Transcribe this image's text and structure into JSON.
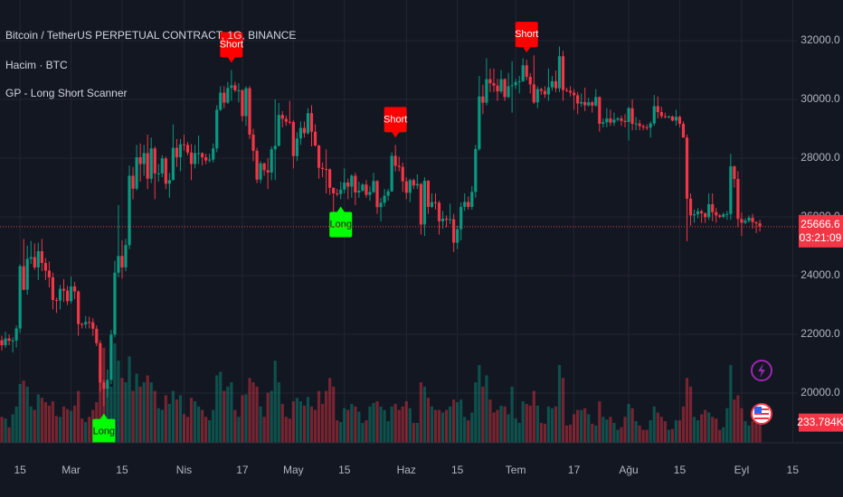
{
  "chart_data": {
    "type": "candlestick",
    "title": "Bitcoin / TetherUS PERPETUAL CONTRACT, 1G, BINANCE",
    "volume_title": "Hacim · BTC",
    "indicator_title": "GP - Long Short Scanner",
    "up_color": "#089981",
    "down_color": "#f23645",
    "grid": true,
    "xlim": [
      40.5,
      259.4
    ],
    "xticks": [
      {
        "value": 46,
        "label": "15"
      },
      {
        "value": 60,
        "label": "Mar"
      },
      {
        "value": 74,
        "label": "15"
      },
      {
        "value": 91,
        "label": "Nis"
      },
      {
        "value": 107,
        "label": "17"
      },
      {
        "value": 121,
        "label": "May"
      },
      {
        "value": 135,
        "label": "15"
      },
      {
        "value": 152,
        "label": "Haz"
      },
      {
        "value": 166,
        "label": "15"
      },
      {
        "value": 182,
        "label": "Tem"
      },
      {
        "value": 198,
        "label": "17"
      },
      {
        "value": 213,
        "label": "Ağu"
      },
      {
        "value": 227,
        "label": "15"
      },
      {
        "value": 244,
        "label": "Eyl"
      },
      {
        "value": 258,
        "label": "15"
      }
    ],
    "ylim": [
      18307.7,
      33384.6
    ],
    "yticks": [
      {
        "value": 20000,
        "label": "20000.0"
      },
      {
        "value": 22000,
        "label": "22000.0"
      },
      {
        "value": 24000,
        "label": "24000.0"
      },
      {
        "value": 26000,
        "label": "26000.0"
      },
      {
        "value": 28000,
        "label": "28000.0"
      },
      {
        "value": 30000,
        "label": "30000.0"
      },
      {
        "value": 32000,
        "label": "32000.0"
      }
    ],
    "x": [
      41,
      42,
      43,
      44,
      45,
      46,
      47,
      48,
      49,
      50,
      51,
      52,
      53,
      54,
      55,
      56,
      57,
      58,
      59,
      60,
      61,
      62,
      63,
      64,
      65,
      66,
      67,
      68,
      69,
      70,
      71,
      72,
      73,
      74,
      75,
      76,
      77,
      78,
      79,
      80,
      81,
      82,
      83,
      84,
      85,
      86,
      87,
      88,
      89,
      90,
      91,
      92,
      93,
      94,
      95,
      96,
      97,
      98,
      99,
      100,
      101,
      102,
      103,
      104,
      105,
      106,
      107,
      108,
      109,
      110,
      111,
      112,
      113,
      114,
      115,
      116,
      117,
      118,
      119,
      120,
      121,
      122,
      123,
      124,
      125,
      126,
      127,
      128,
      129,
      130,
      131,
      132,
      133,
      134,
      135,
      136,
      137,
      138,
      139,
      140,
      141,
      142,
      143,
      144,
      145,
      146,
      147,
      148,
      149,
      150,
      151,
      152,
      153,
      154,
      155,
      156,
      157,
      158,
      159,
      160,
      161,
      162,
      163,
      164,
      165,
      166,
      167,
      168,
      169,
      170,
      171,
      172,
      173,
      174,
      175,
      176,
      177,
      178,
      179,
      180,
      181,
      182,
      183,
      184,
      185,
      186,
      187,
      188,
      189,
      190,
      191,
      192,
      193,
      194,
      195,
      196,
      197,
      198,
      199,
      200,
      201,
      202,
      203,
      204,
      205,
      206,
      207,
      208,
      209,
      210,
      211,
      212,
      213,
      214,
      215,
      216,
      217,
      218,
      219,
      220,
      221,
      222,
      223,
      224,
      225,
      226,
      227,
      228,
      229,
      230,
      231,
      232,
      233,
      234,
      235,
      236,
      237,
      238,
      239,
      240,
      241,
      242,
      243,
      244,
      245,
      246,
      247,
      248,
      249
    ],
    "open": [
      21800,
      21630,
      21860,
      21780,
      21790,
      22200,
      24320,
      23520,
      24570,
      24630,
      24280,
      24830,
      24430,
      24170,
      23940,
      23170,
      23150,
      23550,
      23490,
      23130,
      23630,
      23460,
      22350,
      22340,
      22420,
      22410,
      22190,
      21700,
      20360,
      20150,
      20450,
      21990,
      24100,
      24670,
      24280,
      25040,
      27400,
      26960,
      28030,
      27800,
      28170,
      27300,
      28330,
      27480,
      27480,
      27990,
      27130,
      27250,
      28350,
      28030,
      28470,
      28450,
      28190,
      27800,
      28170,
      28170,
      28030,
      27920,
      27950,
      28330,
      29650,
      30230,
      29890,
      30390,
      30480,
      30310,
      30310,
      29430,
      30380,
      28800,
      28250,
      27270,
      27820,
      27590,
      27510,
      28300,
      28420,
      29470,
      29340,
      29240,
      29230,
      28070,
      28670,
      29030,
      28850,
      29530,
      28900,
      28430,
      27670,
      27630,
      27620,
      26990,
      26800,
      26780,
      26930,
      27170,
      27030,
      27400,
      26830,
      26890,
      27100,
      26750,
      26850,
      27220,
      26330,
      26480,
      26720,
      26870,
      28080,
      27740,
      27700,
      27210,
      26820,
      27250,
      27070,
      27120,
      25740,
      27230,
      26340,
      26500,
      26480,
      25850,
      25940,
      25900,
      25920,
      25120,
      25580,
      26340,
      26510,
      26340,
      26850,
      28310,
      30100,
      29890,
      30690,
      30550,
      30470,
      30270,
      30690,
      30080,
      30450,
      30480,
      30590,
      30620,
      31160,
      30770,
      30510,
      29900,
      30350,
      30290,
      30170,
      30410,
      30620,
      30380,
      31470,
      30320,
      30290,
      30230,
      30140,
      29860,
      29910,
      29800,
      29900,
      29790,
      30080,
      29170,
      29220,
      29350,
      29210,
      29310,
      29350,
      29270,
      29230,
      29700,
      29170,
      29180,
      29090,
      29050,
      29040,
      29180,
      29770,
      29570,
      29430,
      29400,
      29420,
      29280,
      29410,
      29170,
      28700,
      26620,
      26050,
      26090,
      26190,
      26120,
      25990,
      26430,
      26160,
      26050,
      26000,
      26090,
      26100,
      27720,
      27290,
      25930,
      25800,
      25870,
      25970,
      25820,
      25780
    ],
    "high": [
      21950,
      22090,
      22000,
      21900,
      22300,
      24380,
      25250,
      25020,
      25180,
      25100,
      25120,
      25250,
      24600,
      24480,
      24100,
      23250,
      23680,
      23880,
      23650,
      23970,
      23780,
      23500,
      22400,
      22620,
      22600,
      22550,
      22300,
      21800,
      20450,
      20800,
      22150,
      24500,
      26400,
      25200,
      25250,
      27750,
      27700,
      28450,
      28500,
      28450,
      28800,
      28700,
      28400,
      27800,
      28100,
      28050,
      27500,
      29150,
      28650,
      28650,
      28800,
      28550,
      28480,
      28450,
      28770,
      28200,
      28150,
      28150,
      28500,
      29800,
      30450,
      30450,
      30600,
      31000,
      30600,
      30550,
      30350,
      30450,
      30450,
      29000,
      28350,
      27900,
      27850,
      28000,
      28400,
      30000,
      29880,
      29600,
      29450,
      29950,
      29300,
      28880,
      29250,
      29250,
      29700,
      29800,
      29150,
      28450,
      27850,
      28300,
      27650,
      27000,
      26950,
      27200,
      27650,
      27300,
      27450,
      27500,
      27200,
      27150,
      27250,
      27050,
      27500,
      27250,
      26650,
      26950,
      26950,
      28200,
      28450,
      28050,
      27850,
      27350,
      27300,
      27300,
      27450,
      27150,
      27350,
      27250,
      26800,
      26800,
      26550,
      26200,
      26050,
      26450,
      26100,
      25700,
      26500,
      26800,
      26700,
      27050,
      28450,
      30800,
      30500,
      31400,
      31050,
      31050,
      30700,
      31000,
      30720,
      30900,
      31300,
      30700,
      30800,
      31400,
      31350,
      30900,
      31500,
      30450,
      30400,
      30450,
      31050,
      30800,
      30980,
      31800,
      31650,
      30400,
      30450,
      30350,
      30250,
      30200,
      30400,
      30050,
      29950,
      30350,
      30100,
      29350,
      29700,
      29650,
      29550,
      29400,
      29450,
      29500,
      29750,
      30000,
      29400,
      29300,
      29150,
      29150,
      29250,
      30150,
      30100,
      29750,
      29550,
      29450,
      29450,
      29650,
      29450,
      29250,
      28800,
      26800,
      26250,
      26300,
      26250,
      26150,
      26800,
      26800,
      26300,
      26100,
      26150,
      26200,
      28150,
      27750,
      27550,
      26150,
      25950,
      26050,
      26100,
      25850,
      25900
    ],
    "low": [
      21450,
      21540,
      21630,
      21380,
      21550,
      22050,
      23500,
      23350,
      24400,
      24200,
      23850,
      24150,
      23850,
      23600,
      22850,
      22730,
      22850,
      23100,
      23000,
      23050,
      23200,
      21950,
      22200,
      22200,
      22200,
      21950,
      21600,
      20050,
      19550,
      19850,
      20300,
      21900,
      23950,
      23900,
      24150,
      24900,
      26600,
      26900,
      27200,
      27400,
      26950,
      27150,
      26600,
      27200,
      27350,
      26950,
      26650,
      27250,
      27700,
      27550,
      28250,
      28100,
      27250,
      27650,
      27800,
      27750,
      27800,
      27850,
      27850,
      28200,
      29600,
      29700,
      29850,
      29950,
      30250,
      29900,
      29250,
      29100,
      28650,
      27900,
      27150,
      27150,
      27400,
      26950,
      27250,
      27250,
      28400,
      29050,
      29100,
      29150,
      27650,
      27900,
      28450,
      28700,
      28800,
      28400,
      28400,
      27300,
      27350,
      26800,
      26750,
      25800,
      26700,
      26600,
      26800,
      26600,
      26650,
      26400,
      26650,
      26850,
      26650,
      26550,
      26800,
      26100,
      25850,
      26350,
      26550,
      26850,
      27550,
      27550,
      26850,
      26600,
      26500,
      26950,
      26950,
      25400,
      25350,
      26100,
      26300,
      26250,
      25400,
      25600,
      25650,
      25750,
      24800,
      24900,
      25200,
      26200,
      26250,
      26250,
      26650,
      28250,
      29500,
      29800,
      30250,
      30250,
      29950,
      30200,
      29950,
      30050,
      29550,
      30350,
      30200,
      30600,
      30650,
      30200,
      29850,
      29700,
      30150,
      30050,
      29950,
      30300,
      30250,
      30250,
      29950,
      30250,
      30100,
      29650,
      29500,
      29750,
      29600,
      29750,
      29550,
      29750,
      28900,
      29050,
      29050,
      29100,
      29100,
      29250,
      29100,
      29050,
      28600,
      28950,
      28950,
      28950,
      28950,
      28950,
      28700,
      29100,
      29350,
      29350,
      29350,
      29350,
      29250,
      29100,
      29050,
      28700,
      25170,
      25700,
      25800,
      25950,
      25800,
      25800,
      25900,
      25850,
      25800,
      25950,
      25950,
      25900,
      25900,
      27000,
      25650,
      25350,
      25750,
      25800,
      25600,
      25450,
      25500
    ],
    "close": [
      21630,
      21860,
      21780,
      21790,
      22200,
      24320,
      23520,
      24570,
      24630,
      24280,
      24830,
      24430,
      24170,
      23940,
      23170,
      23150,
      23550,
      23490,
      23130,
      23630,
      23460,
      22350,
      22340,
      22420,
      22410,
      22190,
      21700,
      20360,
      20150,
      20450,
      21990,
      24100,
      24670,
      24280,
      25040,
      27400,
      26960,
      28030,
      27800,
      28170,
      27300,
      28330,
      27480,
      27480,
      27990,
      27130,
      27250,
      28350,
      28030,
      28470,
      28450,
      28190,
      27800,
      28170,
      28170,
      28030,
      27920,
      27950,
      28330,
      29650,
      30230,
      29890,
      30390,
      30480,
      30310,
      30310,
      29430,
      30380,
      28800,
      28250,
      27270,
      27820,
      27590,
      27510,
      28300,
      28420,
      29470,
      29340,
      29240,
      29230,
      28070,
      28670,
      29030,
      28850,
      29530,
      28900,
      28430,
      27670,
      27630,
      27620,
      26990,
      26800,
      26780,
      26930,
      27170,
      27030,
      27400,
      26830,
      26890,
      27100,
      26750,
      26850,
      27220,
      26330,
      26480,
      26720,
      26870,
      28080,
      27740,
      27700,
      27210,
      26820,
      27250,
      27070,
      27120,
      25740,
      27230,
      26340,
      26500,
      26480,
      25850,
      25940,
      25900,
      25920,
      25120,
      25580,
      26340,
      26510,
      26340,
      26850,
      28310,
      30100,
      29890,
      30690,
      30550,
      30470,
      30270,
      30690,
      30080,
      30450,
      30480,
      30590,
      30620,
      31160,
      30770,
      30510,
      29900,
      30350,
      30290,
      30170,
      30410,
      30620,
      30380,
      31470,
      30320,
      30290,
      30230,
      30140,
      29860,
      29910,
      29800,
      29900,
      29790,
      30080,
      29170,
      29220,
      29350,
      29210,
      29310,
      29350,
      29270,
      29230,
      29700,
      29170,
      29180,
      29090,
      29050,
      29040,
      29180,
      29770,
      29570,
      29430,
      29400,
      29420,
      29280,
      29410,
      29170,
      28700,
      26620,
      26050,
      26090,
      26190,
      26120,
      25990,
      26430,
      26160,
      26050,
      26000,
      26090,
      26100,
      27720,
      27290,
      25930,
      25800,
      25870,
      25970,
      25820,
      25780,
      25666.6
    ],
    "volume": [
      300,
      280,
      180,
      330,
      420,
      680,
      720,
      650,
      420,
      380,
      560,
      520,
      470,
      430,
      480,
      310,
      300,
      420,
      390,
      370,
      430,
      600,
      280,
      240,
      300,
      380,
      470,
      900,
      1100,
      700,
      650,
      1150,
      950,
      750,
      700,
      1000,
      600,
      800,
      650,
      700,
      780,
      700,
      600,
      400,
      380,
      550,
      450,
      600,
      500,
      550,
      330,
      300,
      520,
      480,
      420,
      380,
      300,
      260,
      380,
      780,
      820,
      600,
      650,
      700,
      380,
      300,
      550,
      560,
      750,
      700,
      650,
      420,
      300,
      580,
      600,
      950,
      700,
      450,
      300,
      280,
      480,
      520,
      480,
      430,
      530,
      420,
      380,
      600,
      450,
      600,
      750,
      650,
      260,
      240,
      400,
      380,
      450,
      420,
      360,
      230,
      260,
      420,
      460,
      480,
      420,
      380,
      250,
      420,
      450,
      380,
      420,
      480,
      400,
      230,
      230,
      700,
      650,
      520,
      420,
      380,
      380,
      350,
      380,
      420,
      500,
      470,
      500,
      300,
      260,
      350,
      700,
      900,
      650,
      780,
      500,
      350,
      380,
      430,
      420,
      330,
      650,
      280,
      230,
      480,
      450,
      430,
      600,
      430,
      230,
      220,
      420,
      400,
      420,
      900,
      750,
      200,
      210,
      330,
      380,
      380,
      400,
      330,
      220,
      200,
      480,
      300,
      270,
      300,
      230,
      150,
      180,
      300,
      450,
      400,
      250,
      200,
      150,
      150,
      260,
      420,
      350,
      300,
      250,
      150,
      160,
      260,
      260,
      420,
      750,
      650,
      300,
      260,
      330,
      380,
      350,
      300,
      280,
      150,
      180,
      400,
      900,
      500,
      550,
      400,
      250,
      200,
      250,
      280,
      233.784
    ],
    "volume_last_label": "233.784K",
    "countdown": "03:21:09",
    "signals": [
      {
        "label": "Long",
        "x": 69,
        "position": "below",
        "color": "#00ff00"
      },
      {
        "label": "Short",
        "x": 104,
        "position": "above",
        "color": "#ff0000"
      },
      {
        "label": "Long",
        "x": 134,
        "position": "below",
        "color": "#00ff00"
      },
      {
        "label": "Short",
        "x": 149,
        "position": "above",
        "color": "#ff0000"
      },
      {
        "label": "Short",
        "x": 185,
        "position": "above",
        "color": "#ff0000"
      }
    ]
  }
}
